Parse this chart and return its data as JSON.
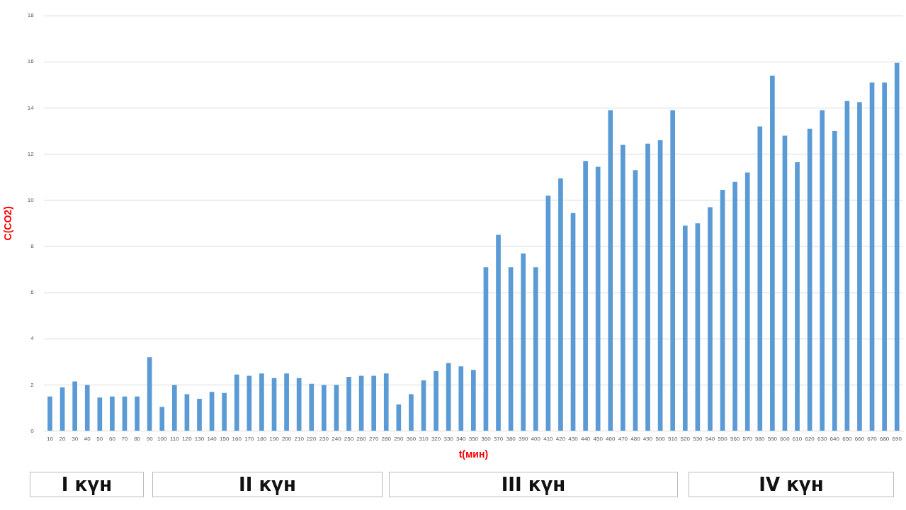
{
  "chart_data": {
    "type": "bar",
    "xlabel": "t(мин)",
    "ylabel": "C(CO2)",
    "categories": [
      "10",
      "20",
      "30",
      "40",
      "50",
      "60",
      "70",
      "80",
      "90",
      "100",
      "110",
      "120",
      "130",
      "140",
      "150",
      "160",
      "170",
      "180",
      "190",
      "200",
      "210",
      "220",
      "230",
      "240",
      "250",
      "260",
      "270",
      "280",
      "290",
      "300",
      "310",
      "320",
      "330",
      "340",
      "350",
      "360",
      "370",
      "380",
      "390",
      "400",
      "410",
      "420",
      "430",
      "440",
      "450",
      "460",
      "470",
      "480",
      "490",
      "500",
      "510",
      "520",
      "530",
      "540",
      "550",
      "560",
      "570",
      "580",
      "590",
      "600",
      "610",
      "620",
      "630",
      "640",
      "650",
      "660",
      "670",
      "680",
      "690"
    ],
    "values": [
      1.5,
      1.9,
      2.15,
      2.0,
      1.45,
      1.5,
      1.5,
      1.5,
      3.2,
      1.05,
      2.0,
      1.6,
      1.4,
      1.7,
      1.65,
      2.45,
      2.4,
      2.5,
      2.3,
      2.5,
      2.3,
      2.05,
      2.0,
      2.0,
      2.35,
      2.4,
      2.4,
      2.5,
      1.15,
      1.6,
      2.2,
      2.6,
      2.95,
      2.8,
      2.65,
      7.1,
      8.5,
      7.1,
      7.7,
      7.1,
      10.2,
      10.95,
      9.45,
      11.7,
      11.45,
      13.9,
      12.4,
      11.3,
      12.45,
      12.6,
      13.9,
      8.9,
      9.0,
      9.7,
      10.45,
      10.8,
      11.2,
      13.2,
      15.4,
      12.8,
      11.65,
      13.1,
      13.9,
      13.0,
      14.3,
      14.25,
      15.1,
      15.1,
      15.95
    ],
    "color": "#5b9bd5",
    "ylim": [
      0,
      18
    ],
    "yticks": [
      0,
      2,
      4,
      6,
      8,
      10,
      12,
      14,
      16,
      18
    ],
    "grid": "y",
    "legend": false,
    "annotations": [
      "I күн",
      "II күн",
      "III күн",
      "IV күн"
    ]
  }
}
